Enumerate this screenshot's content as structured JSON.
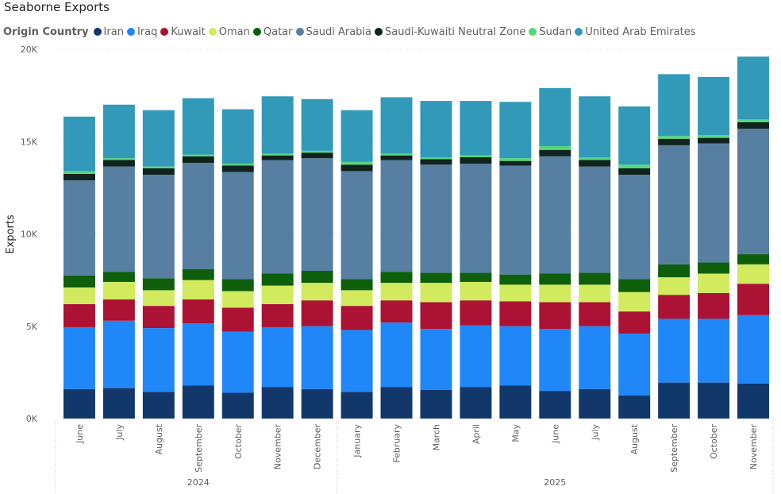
{
  "chart_data": {
    "type": "bar",
    "stacked": true,
    "title": "Seaborne Exports",
    "legend_title": "Origin Country",
    "legend_position": "top-left",
    "ylabel": "Exports",
    "ylim": [
      0,
      20000
    ],
    "y_ticks": [
      "0K",
      "5K",
      "10K",
      "15K",
      "20K"
    ],
    "grid": true,
    "categories": [
      "June",
      "July",
      "August",
      "September",
      "October",
      "November",
      "December",
      "January",
      "February",
      "March",
      "April",
      "May",
      "June",
      "July",
      "August",
      "September",
      "October",
      "November"
    ],
    "year_groups": [
      {
        "label": "2024",
        "count": 7
      },
      {
        "label": "2025",
        "count": 11
      }
    ],
    "series": [
      {
        "name": "Iran",
        "color": "#12386b",
        "values": [
          1600,
          1650,
          1450,
          1800,
          1400,
          1700,
          1600,
          1450,
          1700,
          1550,
          1700,
          1800,
          1500,
          1600,
          1250,
          1950,
          1950,
          1900
        ]
      },
      {
        "name": "Iraq",
        "color": "#1f87f8",
        "values": [
          3350,
          3650,
          3450,
          3350,
          3300,
          3250,
          3400,
          3350,
          3500,
          3300,
          3350,
          3200,
          3350,
          3400,
          3350,
          3450,
          3450,
          3700
        ]
      },
      {
        "name": "Kuwait",
        "color": "#ab1233",
        "values": [
          1250,
          1150,
          1200,
          1300,
          1300,
          1250,
          1400,
          1300,
          1200,
          1450,
          1350,
          1350,
          1450,
          1300,
          1200,
          1300,
          1400,
          1700
        ]
      },
      {
        "name": "Oman",
        "color": "#d1ea5e",
        "values": [
          900,
          950,
          850,
          1050,
          900,
          1000,
          950,
          850,
          950,
          1050,
          1000,
          900,
          950,
          950,
          1050,
          950,
          1050,
          1050
        ]
      },
      {
        "name": "Qatar",
        "color": "#0d5f0c",
        "values": [
          650,
          550,
          650,
          600,
          650,
          650,
          650,
          600,
          600,
          550,
          500,
          550,
          600,
          650,
          700,
          700,
          600,
          550
        ]
      },
      {
        "name": "Saudi Arabia",
        "color": "#577fa2",
        "values": [
          5150,
          5700,
          5600,
          5750,
          5800,
          6150,
          6100,
          5850,
          6050,
          5850,
          5900,
          5900,
          6350,
          5750,
          5650,
          6450,
          6450,
          6800
        ]
      },
      {
        "name": "Saudi-Kuwaiti Neutral Zone",
        "color": "#10231e",
        "values": [
          350,
          350,
          350,
          350,
          350,
          250,
          300,
          350,
          250,
          300,
          350,
          250,
          350,
          350,
          350,
          350,
          300,
          350
        ]
      },
      {
        "name": "Sudan",
        "color": "#53d87b",
        "values": [
          150,
          100,
          100,
          100,
          100,
          100,
          100,
          150,
          100,
          100,
          100,
          150,
          200,
          150,
          200,
          150,
          150,
          150
        ]
      },
      {
        "name": "United Arab Emirates",
        "color": "#3299b9",
        "values": [
          2950,
          2900,
          3050,
          3050,
          2950,
          3100,
          2800,
          2800,
          3050,
          3050,
          2950,
          3050,
          3150,
          3300,
          3150,
          3350,
          3150,
          3400
        ]
      }
    ]
  }
}
